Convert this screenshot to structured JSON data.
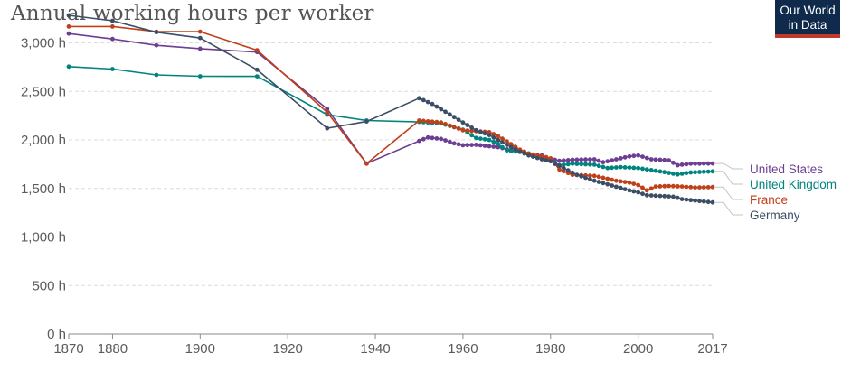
{
  "header": {
    "title": "Annual working hours per worker",
    "logo_line1": "Our World",
    "logo_line2": "in Data"
  },
  "chart_data": {
    "type": "line",
    "title": "Annual working hours per worker",
    "xlabel": "",
    "ylabel": "",
    "xlim": [
      1870,
      2017
    ],
    "ylim": [
      0,
      3200
    ],
    "x_ticks": [
      1870,
      1880,
      1900,
      1920,
      1940,
      1960,
      1980,
      2000,
      2017
    ],
    "y_ticks": [
      {
        "value": 0,
        "label": "0 h"
      },
      {
        "value": 500,
        "label": "500 h"
      },
      {
        "value": 1000,
        "label": "1,000 h"
      },
      {
        "value": 1500,
        "label": "1,500 h"
      },
      {
        "value": 2000,
        "label": "2,000 h"
      },
      {
        "value": 2500,
        "label": "2,500 h"
      },
      {
        "value": 3000,
        "label": "3,000 h"
      }
    ],
    "grid": "horizontal dashed",
    "legend": "right, at line ends",
    "series": [
      {
        "name": "United States",
        "color": "#6d3e91",
        "anchors": [
          [
            1870,
            3096
          ],
          [
            1880,
            3040
          ],
          [
            1890,
            2975
          ],
          [
            1900,
            2940
          ],
          [
            1913,
            2905
          ],
          [
            1929,
            2320
          ],
          [
            1938,
            1756
          ],
          [
            1950,
            1990
          ],
          [
            1952,
            2025
          ],
          [
            1955,
            2010
          ],
          [
            1958,
            1965
          ],
          [
            1960,
            1945
          ],
          [
            1963,
            1950
          ],
          [
            1965,
            1940
          ],
          [
            1968,
            1925
          ],
          [
            1970,
            1905
          ],
          [
            1973,
            1880
          ],
          [
            1975,
            1850
          ],
          [
            1978,
            1840
          ],
          [
            1980,
            1805
          ],
          [
            1982,
            1785
          ],
          [
            1985,
            1795
          ],
          [
            1990,
            1800
          ],
          [
            1992,
            1770
          ],
          [
            1995,
            1800
          ],
          [
            1998,
            1830
          ],
          [
            2000,
            1840
          ],
          [
            2003,
            1800
          ],
          [
            2007,
            1790
          ],
          [
            2009,
            1740
          ],
          [
            2012,
            1755
          ],
          [
            2017,
            1757
          ]
        ]
      },
      {
        "name": "United Kingdom",
        "color": "#00847e",
        "anchors": [
          [
            1870,
            2755
          ],
          [
            1880,
            2730
          ],
          [
            1890,
            2670
          ],
          [
            1900,
            2656
          ],
          [
            1913,
            2655
          ],
          [
            1929,
            2260
          ],
          [
            1938,
            2200
          ],
          [
            1950,
            2185
          ],
          [
            1955,
            2170
          ],
          [
            1960,
            2105
          ],
          [
            1963,
            2020
          ],
          [
            1966,
            2000
          ],
          [
            1968,
            1960
          ],
          [
            1970,
            1890
          ],
          [
            1973,
            1875
          ],
          [
            1975,
            1860
          ],
          [
            1980,
            1790
          ],
          [
            1982,
            1740
          ],
          [
            1985,
            1755
          ],
          [
            1990,
            1745
          ],
          [
            1993,
            1710
          ],
          [
            1996,
            1720
          ],
          [
            2000,
            1710
          ],
          [
            2005,
            1675
          ],
          [
            2009,
            1645
          ],
          [
            2012,
            1665
          ],
          [
            2017,
            1676
          ]
        ]
      },
      {
        "name": "France",
        "color": "#c0401a",
        "anchors": [
          [
            1870,
            3168
          ],
          [
            1880,
            3168
          ],
          [
            1890,
            3115
          ],
          [
            1900,
            3115
          ],
          [
            1913,
            2925
          ],
          [
            1929,
            2285
          ],
          [
            1938,
            1755
          ],
          [
            1950,
            2200
          ],
          [
            1955,
            2180
          ],
          [
            1960,
            2100
          ],
          [
            1963,
            2090
          ],
          [
            1966,
            2080
          ],
          [
            1968,
            2040
          ],
          [
            1970,
            1985
          ],
          [
            1973,
            1900
          ],
          [
            1975,
            1860
          ],
          [
            1978,
            1830
          ],
          [
            1980,
            1810
          ],
          [
            1982,
            1695
          ],
          [
            1985,
            1640
          ],
          [
            1990,
            1630
          ],
          [
            1995,
            1580
          ],
          [
            1998,
            1560
          ],
          [
            2000,
            1535
          ],
          [
            2002,
            1480
          ],
          [
            2004,
            1520
          ],
          [
            2007,
            1525
          ],
          [
            2010,
            1520
          ],
          [
            2013,
            1510
          ],
          [
            2017,
            1514
          ]
        ]
      },
      {
        "name": "Germany",
        "color": "#3c4e66",
        "anchors": [
          [
            1870,
            3284
          ],
          [
            1880,
            3228
          ],
          [
            1890,
            3110
          ],
          [
            1900,
            3050
          ],
          [
            1913,
            2723
          ],
          [
            1929,
            2120
          ],
          [
            1938,
            2190
          ],
          [
            1950,
            2430
          ],
          [
            1953,
            2370
          ],
          [
            1956,
            2290
          ],
          [
            1960,
            2180
          ],
          [
            1963,
            2100
          ],
          [
            1966,
            2050
          ],
          [
            1970,
            1950
          ],
          [
            1973,
            1880
          ],
          [
            1975,
            1840
          ],
          [
            1978,
            1800
          ],
          [
            1980,
            1780
          ],
          [
            1983,
            1710
          ],
          [
            1986,
            1640
          ],
          [
            1990,
            1580
          ],
          [
            1994,
            1530
          ],
          [
            1998,
            1480
          ],
          [
            2000,
            1460
          ],
          [
            2002,
            1430
          ],
          [
            2006,
            1420
          ],
          [
            2008,
            1415
          ],
          [
            2010,
            1390
          ],
          [
            2013,
            1375
          ],
          [
            2017,
            1356
          ]
        ]
      }
    ]
  }
}
